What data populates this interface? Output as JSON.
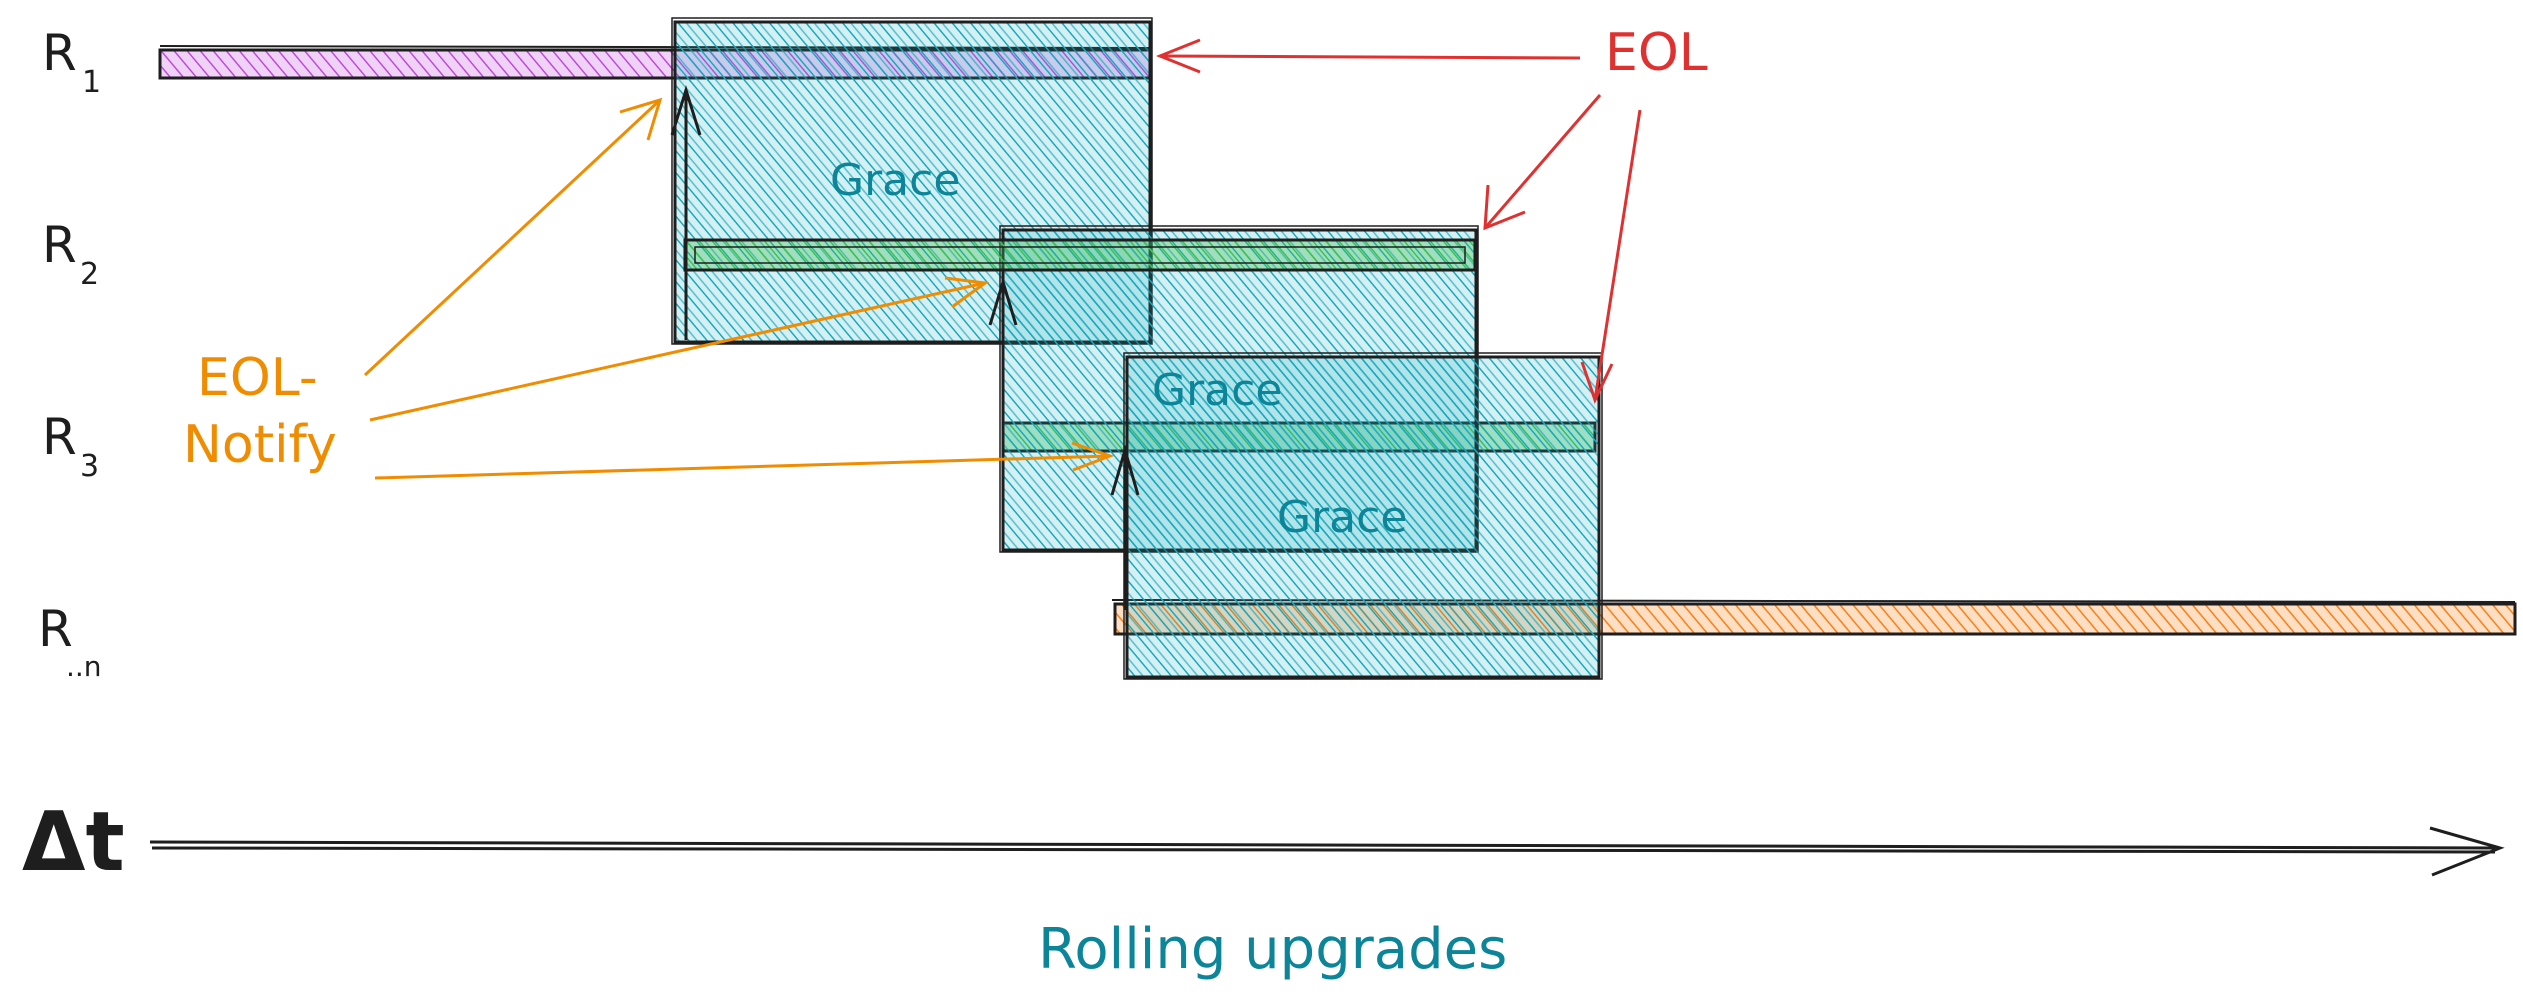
{
  "rows": [
    {
      "main": "R",
      "sub": "1"
    },
    {
      "main": "R",
      "sub": "2"
    },
    {
      "main": "R",
      "sub": "3"
    },
    {
      "main": "R",
      "sub": "..n"
    }
  ],
  "grace_label": "Grace",
  "eol_label": "EOL",
  "eol_notify": {
    "line1": "EOL-",
    "line2": "Notify"
  },
  "time_axis_label": "Δt",
  "caption": "Rolling upgrades",
  "colors": {
    "ink": "#1e1e1e",
    "grace": "#15aabf",
    "grace_text": "#0c8599",
    "r1_bar": "#be4bdb",
    "r2_bar": "#40c057",
    "r3_bar": "#40c057",
    "rn_bar": "#fd7e14",
    "eol": "#e03131",
    "notify": "#f08c00",
    "caption": "#0c8599"
  }
}
